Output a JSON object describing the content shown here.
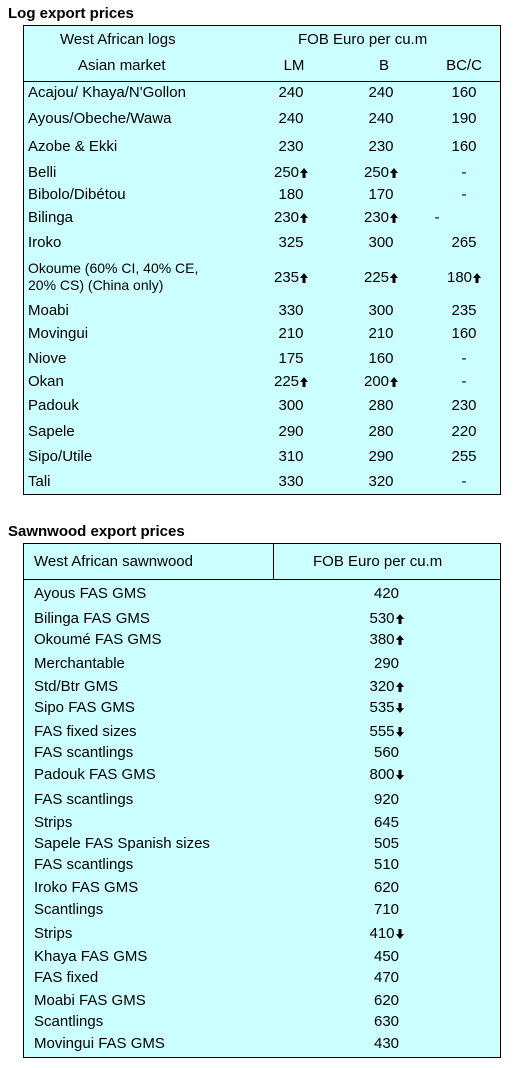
{
  "log": {
    "title": "Log export prices",
    "header": {
      "col1_line1": "West African logs",
      "col1_line2": "Asian market",
      "price_header": "FOB Euro per cu.m",
      "lm": "LM",
      "b": "B",
      "bcc": "BC/C"
    },
    "rows": [
      {
        "name": "Acajou/ Khaya/N'Gollon",
        "lm": "240",
        "b": "240",
        "bcc": "160",
        "lm_arrow": "",
        "b_arrow": "",
        "bcc_arrow": ""
      },
      {
        "name": "Ayous/Obeche/Wawa",
        "lm": "240",
        "b": "240",
        "bcc": "190",
        "lm_arrow": "",
        "b_arrow": "",
        "bcc_arrow": ""
      },
      {
        "name": "Azobe & Ekki",
        "lm": "230",
        "b": "230",
        "bcc": "160",
        "lm_arrow": "",
        "b_arrow": "",
        "bcc_arrow": ""
      },
      {
        "name": "Belli",
        "lm": "250",
        "b": "250",
        "bcc": "-",
        "lm_arrow": "up",
        "b_arrow": "up",
        "bcc_arrow": ""
      },
      {
        "name": "Bibolo/Dibétou",
        "lm": "180",
        "b": "170",
        "bcc": "-",
        "lm_arrow": "",
        "b_arrow": "",
        "bcc_arrow": ""
      },
      {
        "name": "Bilinga",
        "lm": "230",
        "b": "230",
        "bcc": "-",
        "lm_arrow": "up",
        "b_arrow": "up",
        "bcc_arrow": ""
      },
      {
        "name": "Iroko",
        "lm": "325",
        "b": "300",
        "bcc": "265",
        "lm_arrow": "",
        "b_arrow": "",
        "bcc_arrow": ""
      },
      {
        "name": "Okoume (60% CI, 40% CE,",
        "name2": "20% CS) (China only)",
        "lm": "235",
        "b": "225",
        "bcc": "180",
        "lm_arrow": "up",
        "b_arrow": "up",
        "bcc_arrow": "up"
      },
      {
        "name": "Moabi",
        "lm": "330",
        "b": "300",
        "bcc": "235",
        "lm_arrow": "",
        "b_arrow": "",
        "bcc_arrow": ""
      },
      {
        "name": "Movingui",
        "lm": "210",
        "b": "210",
        "bcc": "160",
        "lm_arrow": "",
        "b_arrow": "",
        "bcc_arrow": ""
      },
      {
        "name": "Niove",
        "lm": "175",
        "b": "160",
        "bcc": "-",
        "lm_arrow": "",
        "b_arrow": "",
        "bcc_arrow": ""
      },
      {
        "name": "Okan",
        "lm": "225",
        "b": "200",
        "bcc": "-",
        "lm_arrow": "up",
        "b_arrow": "up",
        "bcc_arrow": ""
      },
      {
        "name": "Padouk",
        "lm": "300",
        "b": "280",
        "bcc": "230",
        "lm_arrow": "",
        "b_arrow": "",
        "bcc_arrow": ""
      },
      {
        "name": "Sapele",
        "lm": "290",
        "b": "280",
        "bcc": "220",
        "lm_arrow": "",
        "b_arrow": "",
        "bcc_arrow": ""
      },
      {
        "name": "Sipo/Utile",
        "lm": "310",
        "b": "290",
        "bcc": "255",
        "lm_arrow": "",
        "b_arrow": "",
        "bcc_arrow": ""
      },
      {
        "name": "Tali",
        "lm": "330",
        "b": "320",
        "bcc": "-",
        "lm_arrow": "",
        "b_arrow": "",
        "bcc_arrow": ""
      }
    ]
  },
  "sawn": {
    "title": "Sawnwood export prices",
    "header": {
      "col1": "West African sawnwood",
      "price_header": "FOB Euro per cu.m"
    },
    "rows": [
      {
        "name": "Ayous FAS GMS",
        "price": "420",
        "arrow": ""
      },
      {
        "name": "Bilinga FAS GMS",
        "price": "530",
        "arrow": "up"
      },
      {
        "name": "Okoumé FAS GMS",
        "price": "380",
        "arrow": "up"
      },
      {
        "name": "Merchantable",
        "price": "290",
        "arrow": ""
      },
      {
        "name": "Std/Btr GMS",
        "price": "320",
        "arrow": "up"
      },
      {
        "name": "Sipo FAS GMS",
        "price": "535",
        "arrow": "down"
      },
      {
        "name": "FAS fixed sizes",
        "price": "555",
        "arrow": "down"
      },
      {
        "name": "FAS scantlings",
        "price": "560",
        "arrow": ""
      },
      {
        "name": "Padouk FAS GMS",
        "price": "800",
        "arrow": "down"
      },
      {
        "name": "FAS scantlings",
        "price": "920",
        "arrow": ""
      },
      {
        "name": "Strips",
        "price": "645",
        "arrow": ""
      },
      {
        "name": "Sapele FAS Spanish sizes",
        "price": "505",
        "arrow": ""
      },
      {
        "name": "FAS scantlings",
        "price": "510",
        "arrow": ""
      },
      {
        "name": "Iroko FAS GMS",
        "price": "620",
        "arrow": ""
      },
      {
        "name": "Scantlings",
        "price": "710",
        "arrow": ""
      },
      {
        "name": "Strips",
        "price": "410",
        "arrow": "down"
      },
      {
        "name": "Khaya FAS GMS",
        "price": "450",
        "arrow": ""
      },
      {
        "name": "FAS fixed",
        "price": "470",
        "arrow": ""
      },
      {
        "name": "Moabi FAS GMS",
        "price": "620",
        "arrow": ""
      },
      {
        "name": "Scantlings",
        "price": "630",
        "arrow": ""
      },
      {
        "name": "Movingui FAS GMS",
        "price": "430",
        "arrow": ""
      }
    ]
  }
}
